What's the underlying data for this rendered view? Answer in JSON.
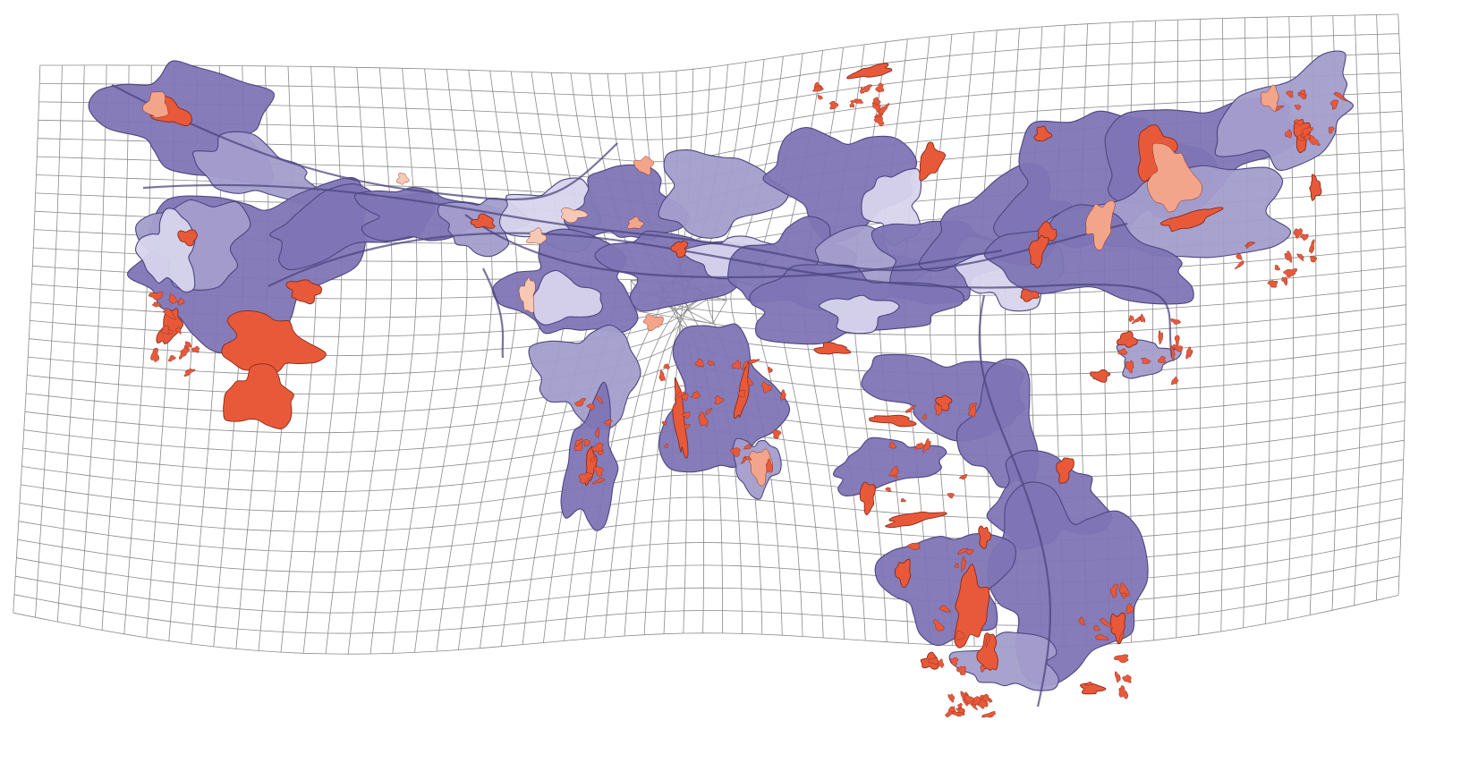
{
  "map": {
    "kind": "distorted-grid cartogram",
    "labels_shown": false,
    "colors": {
      "background": "#ffffff",
      "grid_line": "#8a8a8a",
      "region_dark": "#7e75b5",
      "region_mid": "#a39dcc",
      "region_light": "#d7d4ec",
      "region_outline": "#4c4680",
      "highlight_red": "#e8593a",
      "highlight_peach": "#f2a58a",
      "highlight_pale": "#f7c9b4"
    }
  }
}
